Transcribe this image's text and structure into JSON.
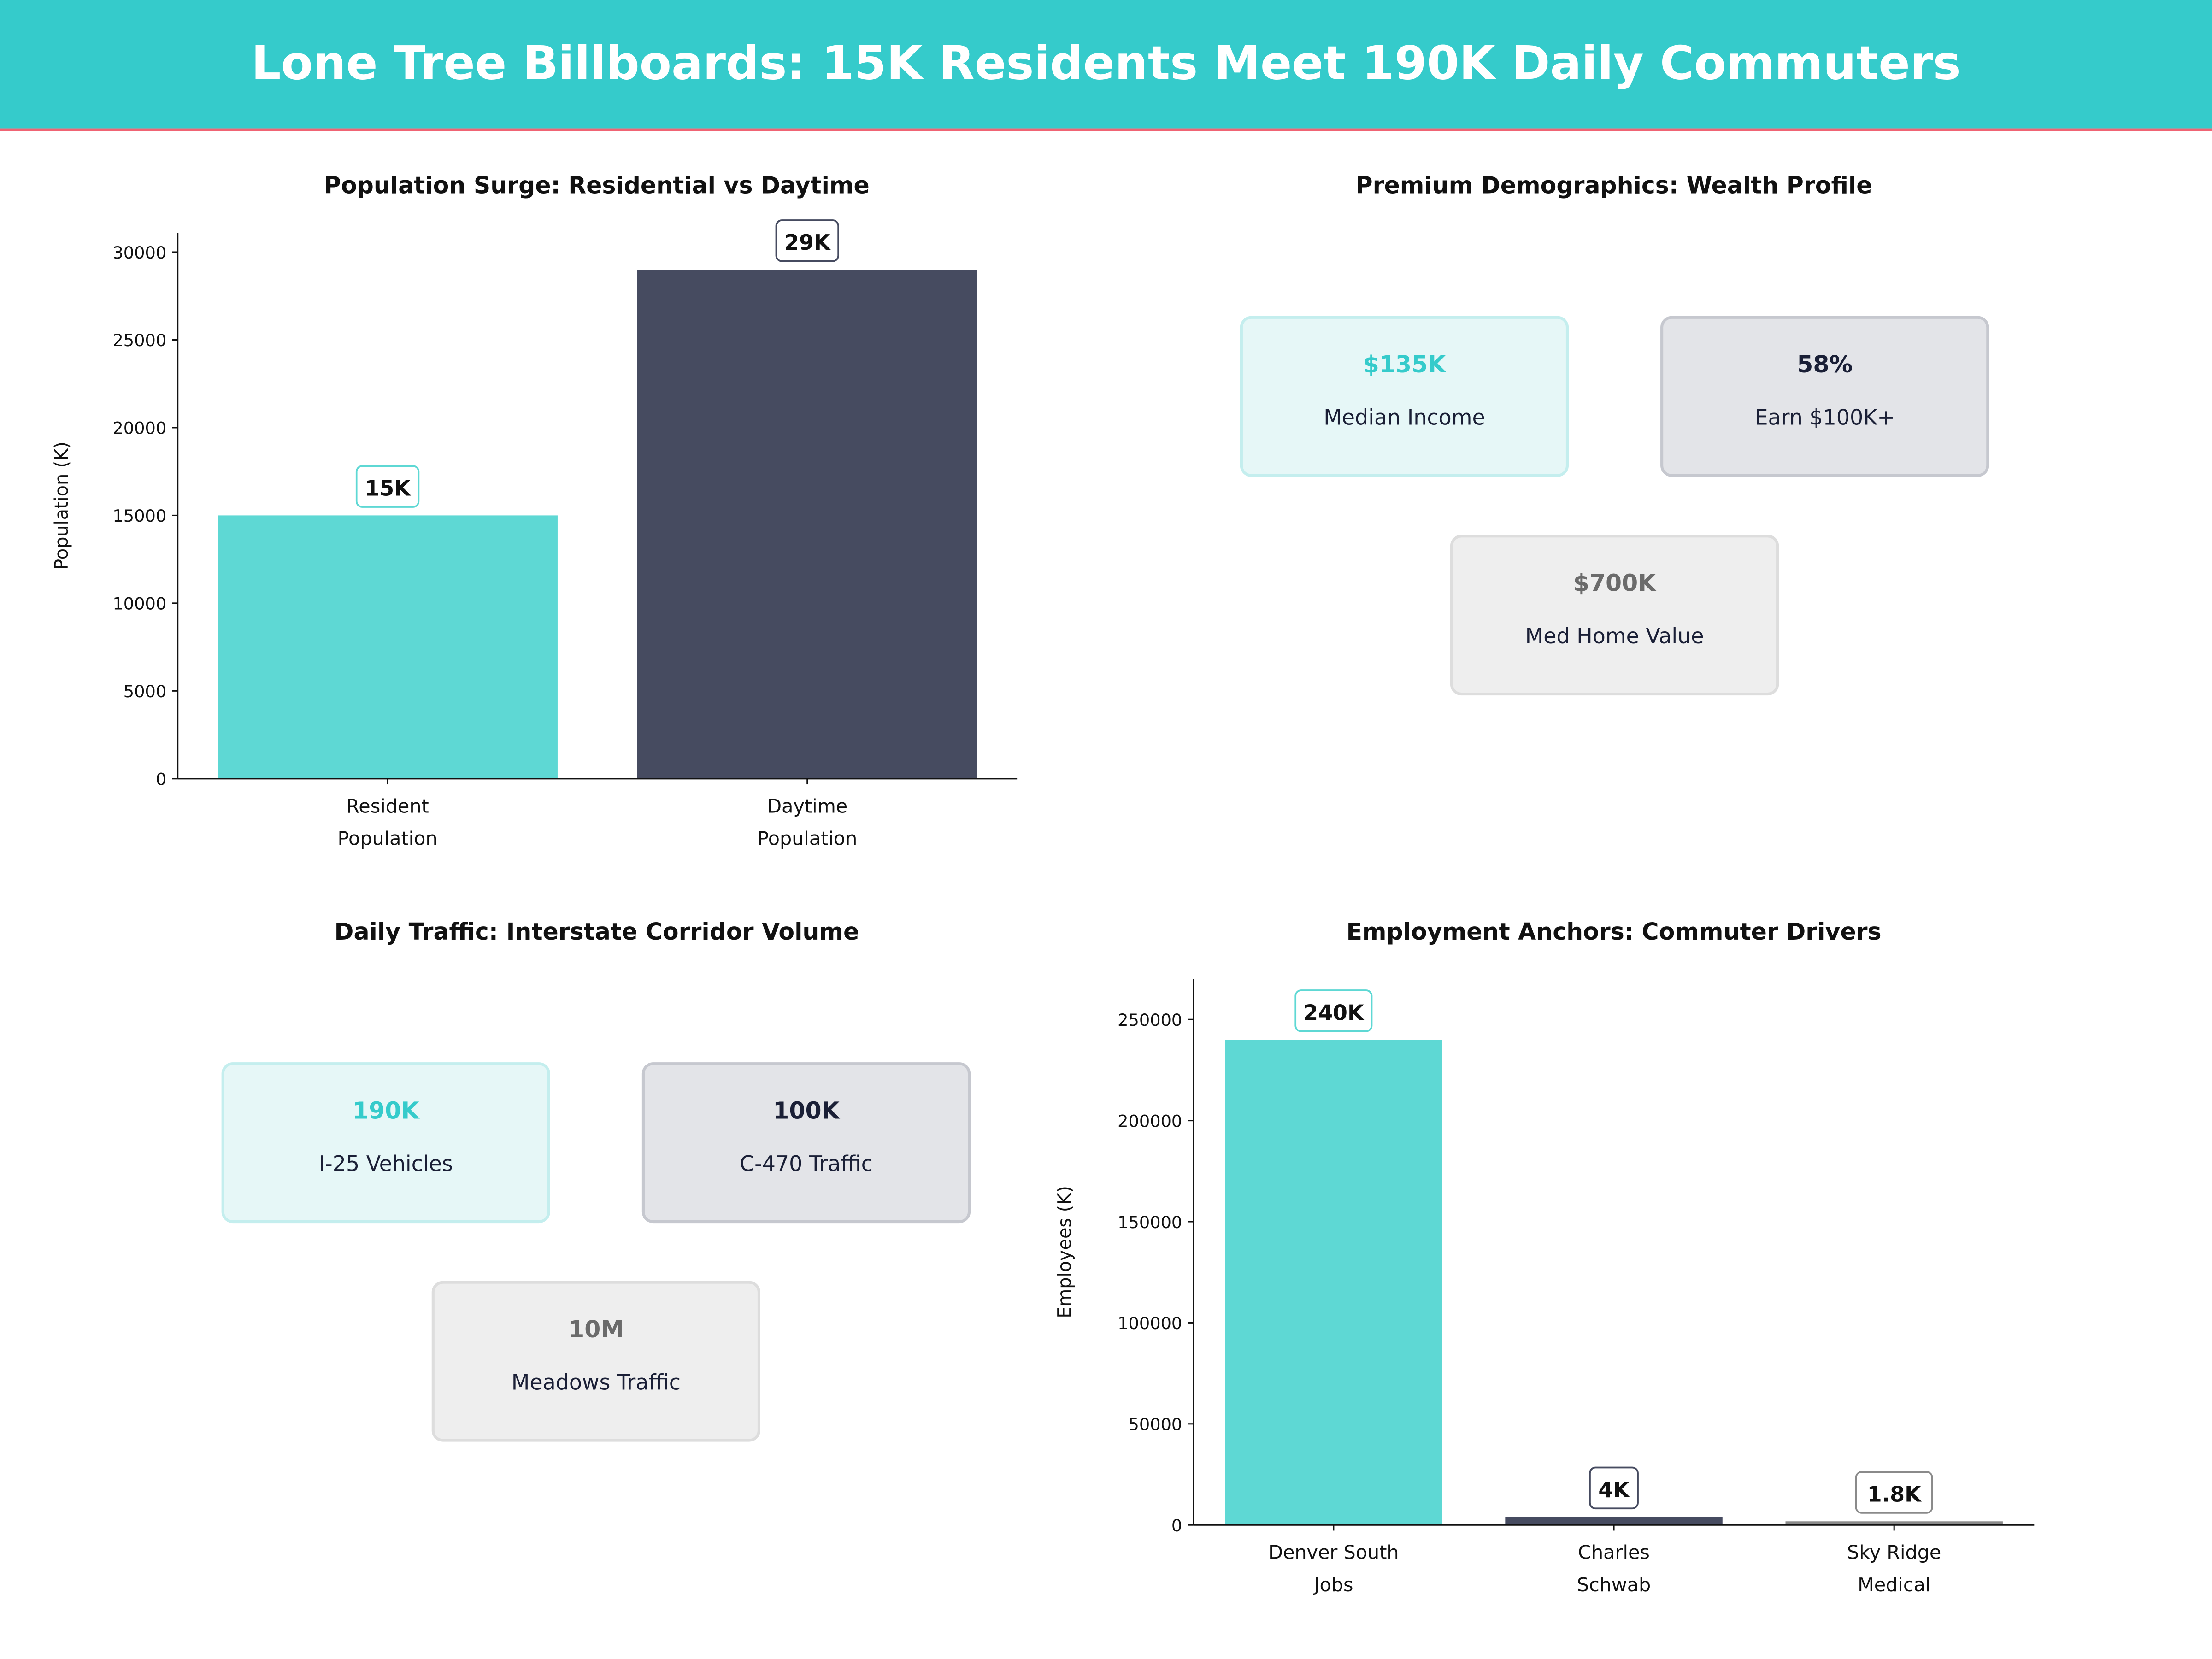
{
  "header": {
    "title": "Lone Tree Billboards: 15K Residents Meet 190K Daily Commuters",
    "bg_color": "#35CBCB",
    "accent_line_color": "#F06474"
  },
  "colors": {
    "teal": "#5ED8D4",
    "dark": "#464B60",
    "gray": "#8A8A8A"
  },
  "chart_data": [
    {
      "type": "bar",
      "title": "Population Surge: Residential vs Daytime",
      "ylabel": "Population (K)",
      "categories": [
        "Resident\nPopulation",
        "Daytime\nPopulation"
      ],
      "values": [
        15000,
        29000
      ],
      "data_labels": [
        "15K",
        "29K"
      ],
      "colors": [
        "#5ED8D4",
        "#464B60"
      ],
      "yticks": [
        0,
        5000,
        10000,
        15000,
        20000,
        25000,
        30000
      ],
      "ylim": [
        0,
        31100
      ],
      "grid": false
    },
    {
      "type": "table",
      "title": "Premium Demographics: Wealth Profile",
      "cards": [
        {
          "value": "$135K",
          "label": "Median Income",
          "style": "teal"
        },
        {
          "value": "58%",
          "label": "Earn $100K+",
          "style": "dark"
        },
        {
          "value": "$700K",
          "label": "Med Home Value",
          "style": "gray"
        }
      ]
    },
    {
      "type": "table",
      "title": "Daily Traffic: Interstate Corridor Volume",
      "cards": [
        {
          "value": "190K",
          "label": "I-25  Vehicles",
          "style": "teal"
        },
        {
          "value": "100K",
          "label": "C-470  Traffic",
          "style": "dark"
        },
        {
          "value": "10M",
          "label": "Meadows Traffic",
          "style": "gray"
        }
      ]
    },
    {
      "type": "bar",
      "title": "Employment Anchors: Commuter Drivers",
      "ylabel": "Employees (K)",
      "categories": [
        "Denver South\nJobs",
        "Charles\nSchwab",
        "Sky Ridge\nMedical"
      ],
      "values": [
        240000,
        4000,
        1800
      ],
      "data_labels": [
        "240K",
        "4K",
        "1.8K"
      ],
      "colors": [
        "#5ED8D4",
        "#464B60",
        "#8A8A8A"
      ],
      "yticks": [
        0,
        50000,
        100000,
        150000,
        200000,
        250000
      ],
      "ylim": [
        0,
        270000
      ],
      "grid": false
    }
  ]
}
